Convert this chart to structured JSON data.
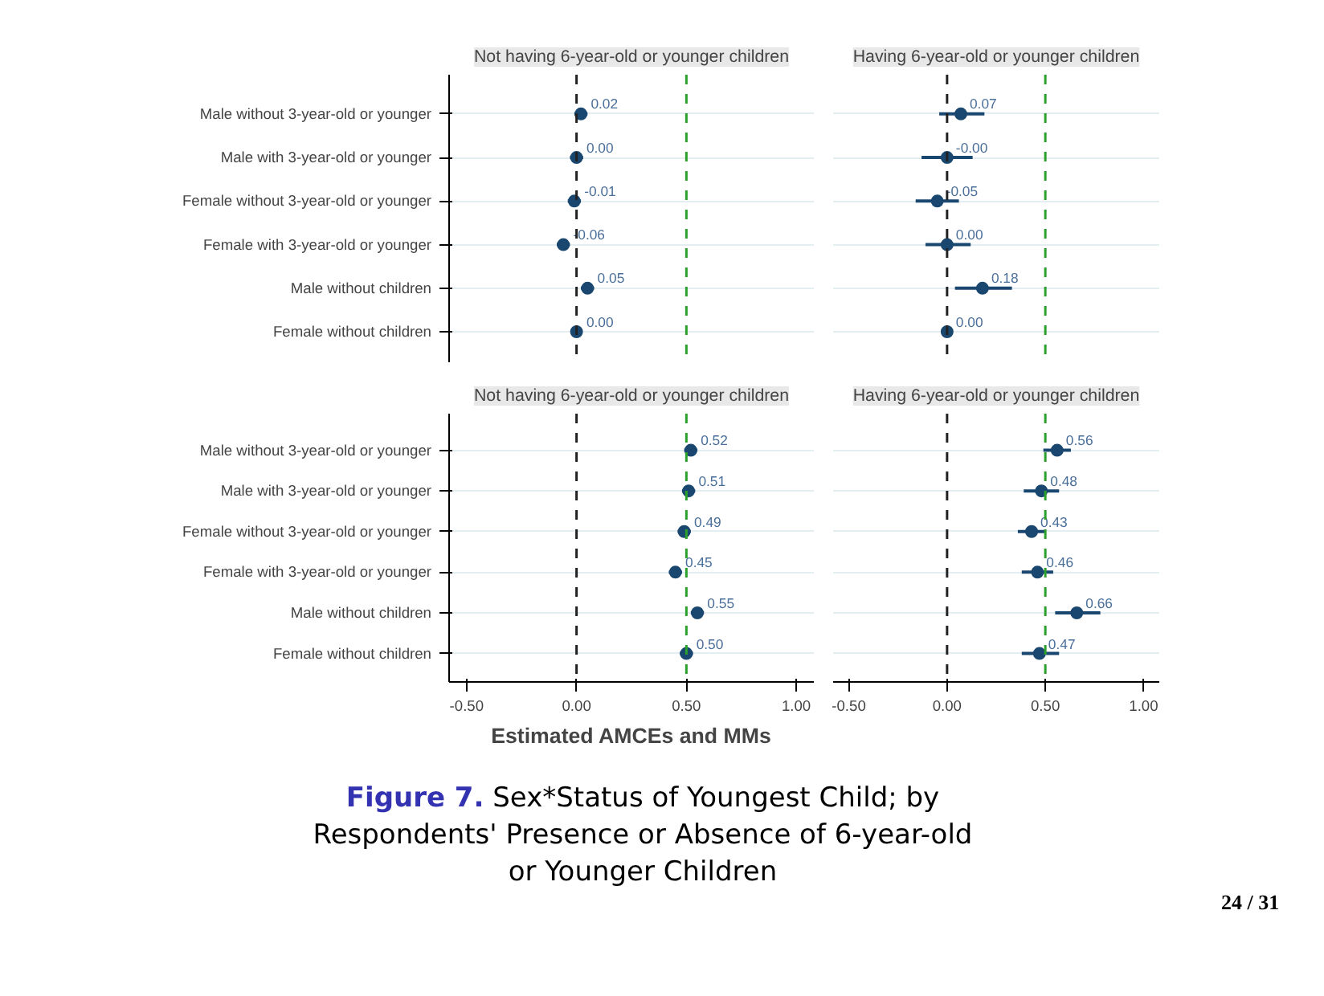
{
  "chart_data": [
    {
      "type": "scatter",
      "orientation": "horizontal",
      "title": "Not having 6-year-old or younger children",
      "categories": [
        "Male without 3-year-old or younger",
        "Male with 3-year-old or younger",
        "Female without 3-year-old or younger",
        "Female with 3-year-old or younger",
        "Male without children",
        "Female without children"
      ],
      "values": [
        0.02,
        0.0,
        -0.01,
        -0.06,
        0.05,
        0.0
      ],
      "errors": [
        0.03,
        0.03,
        0.03,
        0.03,
        0.03,
        0.01
      ],
      "value_labels": [
        "0.02",
        "0.00",
        "-0.01",
        "-0.06",
        "0.05",
        "0.00"
      ],
      "color": "#1a476f",
      "marker": "circle",
      "grid": "y",
      "tick_labels": "y",
      "xlim": [
        -0.58,
        1.08
      ],
      "ref_lines": [
        {
          "axis": "x",
          "value": 0,
          "color": "#222222",
          "line_style": "dashed"
        },
        {
          "axis": "x",
          "value": 0.5,
          "color": "#2ca02c",
          "line_style": "dashed"
        }
      ]
    },
    {
      "type": "scatter",
      "orientation": "horizontal",
      "title": "Having 6-year-old or younger children",
      "values": [
        0.07,
        0.0,
        -0.05,
        0.0,
        0.18,
        0.0
      ],
      "errors": [
        [
          -0.04,
          0.19
        ],
        [
          -0.13,
          0.13
        ],
        [
          -0.16,
          0.06
        ],
        [
          -0.11,
          0.12
        ],
        [
          0.04,
          0.33
        ],
        0.01
      ],
      "value_labels": [
        "0.07",
        "-0.00",
        "-0.05",
        "0.00",
        "0.18",
        "0.00"
      ],
      "color": "#1a476f",
      "marker": "circle",
      "grid": "y",
      "tick_labels": false,
      "xlim": [
        -0.58,
        1.08
      ],
      "ref_lines": [
        {
          "axis": "x",
          "value": 0,
          "color": "#222222",
          "line_style": "dashed"
        },
        {
          "axis": "x",
          "value": 0.5,
          "color": "#2ca02c",
          "line_style": "dashed"
        }
      ]
    },
    {
      "type": "scatter",
      "orientation": "horizontal",
      "title": "Not having 6-year-old or younger children",
      "xlabel": "Estimated AMCEs and MMs",
      "categories": [
        "Male without 3-year-old or younger",
        "Male with 3-year-old or younger",
        "Female without 3-year-old or younger",
        "Female with 3-year-old or younger",
        "Male without children",
        "Female without children"
      ],
      "values": [
        0.52,
        0.51,
        0.49,
        0.45,
        0.55,
        0.5
      ],
      "errors": [
        0.03,
        0.03,
        0.03,
        0.03,
        0.03,
        0.03
      ],
      "value_labels": [
        "0.52",
        "0.51",
        "0.49",
        "0.45",
        "0.55",
        "0.50"
      ],
      "color": "#1a476f",
      "marker": "circle",
      "grid": "y",
      "xlim": [
        -0.58,
        1.08
      ],
      "xticks": [
        {
          "value": -0.5,
          "label": "-0.50"
        },
        {
          "value": 0,
          "label": "0.00"
        },
        {
          "value": 0.5,
          "label": "0.50"
        },
        {
          "value": 1,
          "label": "1.00"
        }
      ],
      "ref_lines": [
        {
          "axis": "x",
          "value": 0,
          "color": "#222222",
          "line_style": "dashed"
        },
        {
          "axis": "x",
          "value": 0.5,
          "color": "#2ca02c",
          "line_style": "dashed"
        }
      ],
      "annotations": [
        "Figure 7.",
        "Sex*Status of Youngest Child; by Respondents' Presence or Absence of 6-year-old or Younger Children",
        "24 / 31"
      ]
    },
    {
      "type": "scatter",
      "orientation": "horizontal",
      "title": "Having 6-year-old or younger children",
      "values": [
        0.56,
        0.48,
        0.43,
        0.46,
        0.66,
        0.47
      ],
      "errors": [
        [
          0.49,
          0.63
        ],
        [
          0.39,
          0.57
        ],
        [
          0.36,
          0.5
        ],
        [
          0.38,
          0.54
        ],
        [
          0.55,
          0.78
        ],
        [
          0.38,
          0.57
        ]
      ],
      "value_labels": [
        "0.56",
        "0.48",
        "0.43",
        "0.46",
        "0.66",
        "0.47"
      ],
      "color": "#1a476f",
      "marker": "circle",
      "grid": "y",
      "tick_labels": "x",
      "xlim": [
        -0.58,
        1.08
      ],
      "xticks": [
        {
          "value": -0.5,
          "label": "-0.50"
        },
        {
          "value": 0,
          "label": "0.00"
        },
        {
          "value": 0.5,
          "label": "0.50"
        },
        {
          "value": 1,
          "label": "1.00"
        }
      ],
      "ref_lines": [
        {
          "axis": "x",
          "value": 0,
          "color": "#222222",
          "line_style": "dashed"
        },
        {
          "axis": "x",
          "value": 0.5,
          "color": "#2ca02c",
          "line_style": "dashed"
        }
      ]
    }
  ]
}
